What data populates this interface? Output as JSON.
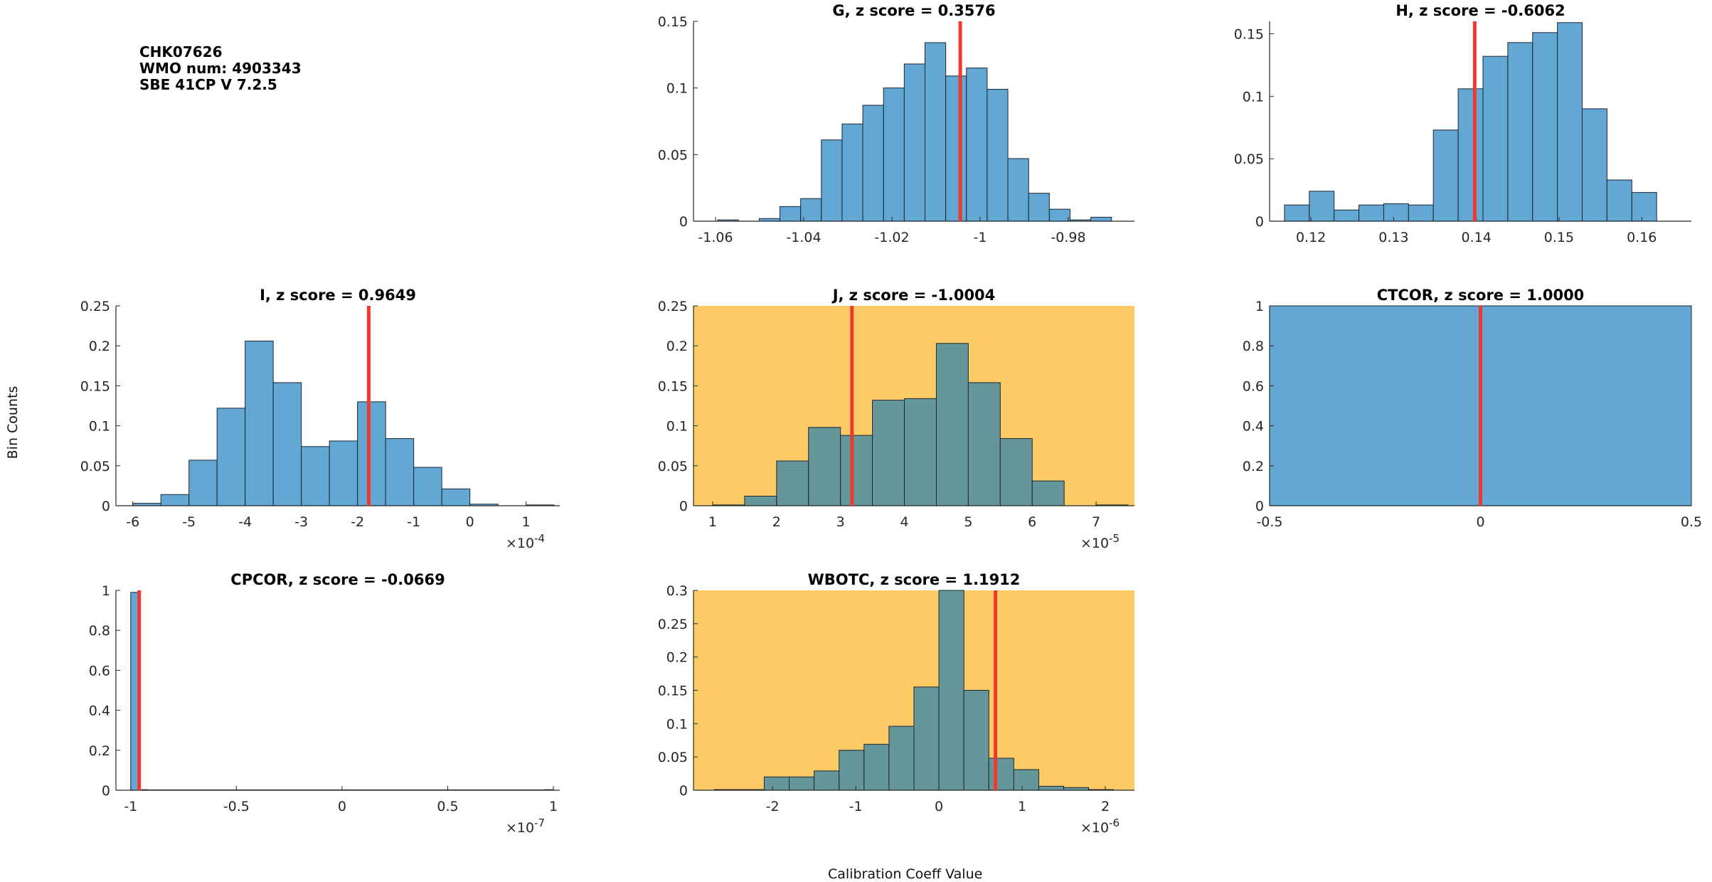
{
  "info": {
    "line1": "CHK07626",
    "line2": "WMO num: 4903343",
    "line3": "SBE 41CP V 7.2.5"
  },
  "figure": {
    "ylabel": "Bin Counts",
    "xlabel": "Calibration Coeff Value"
  },
  "colors": {
    "bar_fill": "#63a7d5",
    "bar_fill_highlight": "#65979a",
    "highlight_bg": "#fdcb65",
    "marker": "#ee3a2e",
    "bar_edge": "#1b2631"
  },
  "chart_data": [
    {
      "id": "G",
      "type": "bar",
      "title": "G, z score = 0.3576",
      "highlight": false,
      "xlim": [
        -1.065,
        -0.965
      ],
      "ylim": [
        0,
        0.15
      ],
      "xticks": [
        -1.06,
        -1.04,
        -1.02,
        -1.0,
        -0.98
      ],
      "xtick_labels": [
        "-1.06",
        "-1.04",
        "-1.02",
        "-1",
        "-0.98"
      ],
      "yticks": [
        0,
        0.05,
        0.1,
        0.15
      ],
      "ytick_labels": [
        "0",
        "0.05",
        "0.1",
        "0.15"
      ],
      "exponent": "",
      "bin_start": -1.0595,
      "bin_width": 0.0047,
      "values": [
        0.001,
        0,
        0.002,
        0.011,
        0.017,
        0.061,
        0.073,
        0.087,
        0.1,
        0.118,
        0.134,
        0.109,
        0.115,
        0.099,
        0.047,
        0.021,
        0.009,
        0.001,
        0.003
      ],
      "marker": -1.0045
    },
    {
      "id": "H",
      "type": "bar",
      "title": "H, z score = -0.6062",
      "highlight": false,
      "xlim": [
        0.115,
        0.166
      ],
      "ylim": [
        0,
        0.16
      ],
      "xticks": [
        0.12,
        0.13,
        0.14,
        0.15,
        0.16
      ],
      "xtick_labels": [
        "0.12",
        "0.13",
        "0.14",
        "0.15",
        "0.16"
      ],
      "yticks": [
        0,
        0.05,
        0.1,
        0.15
      ],
      "ytick_labels": [
        "0",
        "0.05",
        "0.1",
        "0.15"
      ],
      "exponent": "",
      "bin_start": 0.1168,
      "bin_width": 0.003,
      "values": [
        0.013,
        0.024,
        0.009,
        0.013,
        0.014,
        0.013,
        0.073,
        0.106,
        0.132,
        0.143,
        0.151,
        0.159,
        0.09,
        0.033,
        0.023
      ],
      "marker": 0.1398
    },
    {
      "id": "I",
      "type": "bar",
      "title": "I, z score = 0.9649",
      "highlight": false,
      "xlim": [
        -6.3,
        1.6
      ],
      "ylim": [
        0,
        0.25
      ],
      "xticks": [
        -6,
        -5,
        -4,
        -3,
        -2,
        -1,
        0,
        1
      ],
      "xtick_labels": [
        "-6",
        "-5",
        "-4",
        "-3",
        "-2",
        "-1",
        "0",
        "1"
      ],
      "yticks": [
        0,
        0.05,
        0.1,
        0.15,
        0.2,
        0.25
      ],
      "ytick_labels": [
        "0",
        "0.05",
        "0.1",
        "0.15",
        "0.2",
        "0.25"
      ],
      "exponent": "-4",
      "bin_start": -6.0,
      "bin_width": 0.5,
      "values": [
        0.003,
        0.014,
        0.057,
        0.122,
        0.206,
        0.154,
        0.074,
        0.081,
        0.13,
        0.084,
        0.048,
        0.021,
        0.002,
        0,
        0.001
      ],
      "marker": -1.8
    },
    {
      "id": "J",
      "type": "bar",
      "title": "J, z score = -1.0004",
      "highlight": true,
      "xlim": [
        0.7,
        7.6
      ],
      "ylim": [
        0,
        0.25
      ],
      "xticks": [
        1,
        2,
        3,
        4,
        5,
        6,
        7
      ],
      "xtick_labels": [
        "1",
        "2",
        "3",
        "4",
        "5",
        "6",
        "7"
      ],
      "yticks": [
        0,
        0.05,
        0.1,
        0.15,
        0.2,
        0.25
      ],
      "ytick_labels": [
        "0",
        "0.05",
        "0.1",
        "0.15",
        "0.2",
        "0.25"
      ],
      "exponent": "-5",
      "bin_start": 1.0,
      "bin_width": 0.5,
      "values": [
        0.001,
        0.012,
        0.056,
        0.098,
        0.088,
        0.132,
        0.134,
        0.203,
        0.154,
        0.084,
        0.031,
        0,
        0.001
      ],
      "marker": 3.18
    },
    {
      "id": "CTCOR",
      "type": "bar",
      "title": "CTCOR, z score = 1.0000",
      "highlight": false,
      "xlim": [
        -0.5,
        0.5
      ],
      "ylim": [
        0,
        1
      ],
      "xticks": [
        -0.5,
        0,
        0.5
      ],
      "xtick_labels": [
        "-0.5",
        "0",
        "0.5"
      ],
      "yticks": [
        0,
        0.2,
        0.4,
        0.6,
        0.8,
        1
      ],
      "ytick_labels": [
        "0",
        "0.2",
        "0.4",
        "0.6",
        "0.8",
        "1"
      ],
      "exponent": "",
      "bin_start": -0.5,
      "bin_width": 1.0,
      "values": [
        1
      ],
      "marker": 0
    },
    {
      "id": "CPCOR",
      "type": "bar",
      "title": "CPCOR, z score = -0.0669",
      "highlight": false,
      "xlim": [
        -1.07,
        1.03
      ],
      "ylim": [
        0,
        1
      ],
      "xticks": [
        -1,
        -0.5,
        0,
        0.5,
        1
      ],
      "xtick_labels": [
        "-1",
        "-0.5",
        "0",
        "0.5",
        "1"
      ],
      "yticks": [
        0,
        0.2,
        0.4,
        0.6,
        0.8,
        1
      ],
      "ytick_labels": [
        "0",
        "0.2",
        "0.4",
        "0.6",
        "0.8",
        "1"
      ],
      "exponent": "-7",
      "bin_start": -1.0,
      "bin_width": 0.04,
      "values": [
        0.99,
        0.003,
        0.002,
        0.002,
        0.002,
        0.002,
        0.002,
        0.002,
        0.002,
        0.002,
        0.002,
        0.002,
        0.002,
        0.002,
        0.002,
        0.002,
        0.002,
        0.002,
        0.002,
        0.002,
        0.002,
        0.002,
        0.002,
        0.002,
        0.002,
        0.002,
        0.002,
        0.002,
        0.002,
        0.002,
        0.002,
        0.002,
        0.002,
        0.002,
        0.002,
        0.002,
        0.002,
        0.002,
        0.002,
        0.002,
        0.002,
        0.002,
        0.002,
        0.002,
        0.002,
        0.002,
        0.002,
        0.002,
        0.002,
        0.003
      ],
      "marker": -0.96
    },
    {
      "id": "WBOTC",
      "type": "bar",
      "title": "WBOTC, z score = 1.1912",
      "highlight": true,
      "xlim": [
        -2.95,
        2.35
      ],
      "ylim": [
        0,
        0.3
      ],
      "xticks": [
        -2,
        -1,
        0,
        1,
        2
      ],
      "xtick_labels": [
        "-2",
        "-1",
        "0",
        "1",
        "2"
      ],
      "yticks": [
        0,
        0.05,
        0.1,
        0.15,
        0.2,
        0.25,
        0.3
      ],
      "ytick_labels": [
        "0",
        "0.05",
        "0.1",
        "0.15",
        "0.2",
        "0.25",
        "0.3"
      ],
      "exponent": "-6",
      "bin_start": -2.7,
      "bin_width": 0.3,
      "values": [
        0.001,
        0.001,
        0.02,
        0.02,
        0.029,
        0.06,
        0.069,
        0.096,
        0.155,
        0.3,
        0.15,
        0.048,
        0.031,
        0.006,
        0.004,
        0.001
      ],
      "marker": 0.68
    }
  ]
}
